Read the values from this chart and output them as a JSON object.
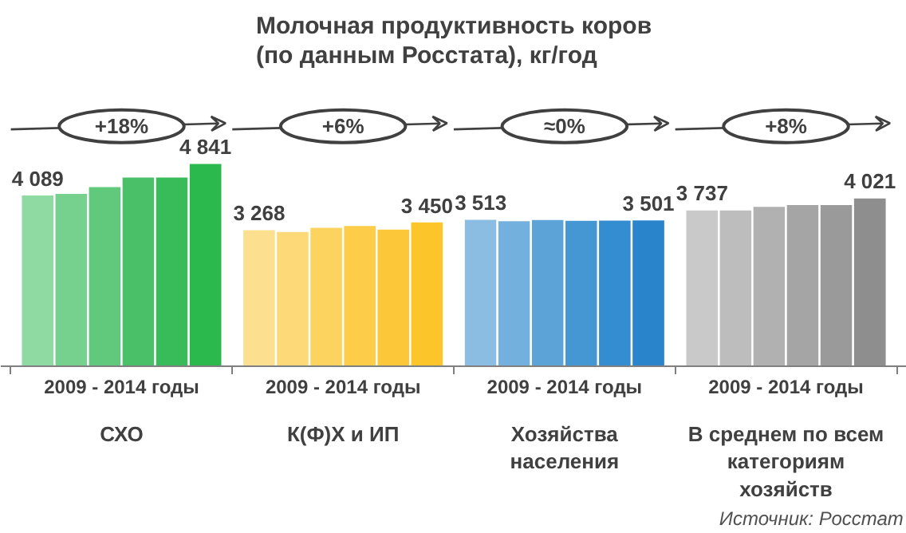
{
  "chart_data": {
    "type": "bar",
    "title": "Молочная продуктивность коров (по данным Росстата), кг/год",
    "categories": [
      "СХО",
      "К(Ф)Х и ИП",
      "Хозяйства населения",
      "В среднем по всем категориям хозяйств"
    ],
    "xlabel": "2009 - 2014 годы",
    "series": [
      {
        "colors": [
          "#8fd9a2",
          "#fde08f",
          "#8bbde3",
          "#c9c9c9"
        ],
        "values": [
          4089,
          3268,
          3513,
          3737
        ],
        "value_labels": [
          "4 089",
          "3 268",
          "3 513",
          "3 737"
        ]
      },
      {
        "colors": [
          "#77d18e",
          "#fdd977",
          "#74b0de",
          "#bdbdbd"
        ],
        "values": [
          4130,
          3226,
          3480,
          3737
        ],
        "value_labels": [
          null,
          null,
          null,
          null
        ]
      },
      {
        "colors": [
          "#60c97b",
          "#fdd35f",
          "#5ca3d8",
          "#b1b1b1"
        ],
        "values": [
          4290,
          3324,
          3510,
          3822
        ],
        "value_labels": [
          null,
          null,
          null,
          null
        ]
      },
      {
        "colors": [
          "#4ac168",
          "#fdcd4a",
          "#4597d3",
          "#a5a5a5"
        ],
        "values": [
          4520,
          3366,
          3490,
          3865
        ],
        "value_labels": [
          null,
          null,
          null,
          null
        ]
      },
      {
        "colors": [
          "#38bb59",
          "#fcc83a",
          "#338dd0",
          "#9a9a9a"
        ],
        "values": [
          4520,
          3282,
          3495,
          3865
        ],
        "value_labels": [
          null,
          null,
          null,
          null
        ]
      },
      {
        "colors": [
          "#2bb84c",
          "#fcc52a",
          "#2a84cc",
          "#8e8e8e"
        ],
        "values": [
          4841,
          3450,
          3501,
          4021
        ],
        "value_labels": [
          "4 841",
          "3 450",
          "3 501",
          "4 021"
        ]
      }
    ],
    "annotations": [
      "+18%",
      "+6%",
      "≈0%",
      "+8%",
      "Источник: Росстат"
    ]
  }
}
